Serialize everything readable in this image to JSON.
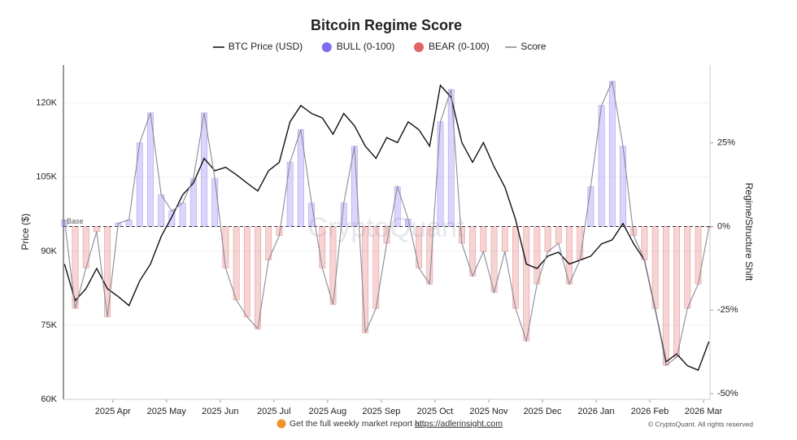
{
  "chart_data": {
    "type": "regime",
    "title": "Bitcoin Regime Score",
    "y_label": "Price ($)",
    "y2_label": "Regime/Structure Shift",
    "base_label": "Base",
    "watermark": "CryptoQuant",
    "footer_text": "Get the full weekly market report at",
    "footer_link": "https://adlerinsight.com",
    "copyright": "© CryptoQuant. All rights reserved",
    "x": [
      3.1,
      3.3,
      3.5,
      3.7,
      3.9,
      4.1,
      4.3,
      4.5,
      4.7,
      4.9,
      5.1,
      5.3,
      5.5,
      5.7,
      5.9,
      6.1,
      6.3,
      6.5,
      6.7,
      6.9,
      7.1,
      7.3,
      7.5,
      7.7,
      7.9,
      8.1,
      8.3,
      8.5,
      8.7,
      8.9,
      9.1,
      9.3,
      9.5,
      9.7,
      9.9,
      10.1,
      10.3,
      10.5,
      10.7,
      10.9,
      11.1,
      11.3,
      11.5,
      11.7,
      11.9,
      12.1,
      12.3,
      12.5,
      12.7,
      12.9,
      13.1,
      13.3,
      13.5,
      13.7,
      13.9,
      14.1,
      14.3,
      14.5,
      14.7,
      14.9,
      15.1
    ],
    "xlim": [
      3.08,
      15.12
    ],
    "xticks": [
      {
        "value": 4,
        "label": "2025 Apr"
      },
      {
        "value": 5,
        "label": "2025 May"
      },
      {
        "value": 6,
        "label": "2025 Jun"
      },
      {
        "value": 7,
        "label": "2025 Jul"
      },
      {
        "value": 8,
        "label": "2025 Aug"
      },
      {
        "value": 9,
        "label": "2025 Sep"
      },
      {
        "value": 10,
        "label": "2025 Oct"
      },
      {
        "value": 11,
        "label": "2025 Nov"
      },
      {
        "value": 12,
        "label": "2025 Dec"
      },
      {
        "value": 13,
        "label": "2026 Jan"
      },
      {
        "value": 14,
        "label": "2026 Feb"
      },
      {
        "value": 15,
        "label": "2026 Mar"
      }
    ],
    "ylim": [
      60000,
      127700
    ],
    "yticks": [
      {
        "value": 60000,
        "label": "60K"
      },
      {
        "value": 75000,
        "label": "75K"
      },
      {
        "value": 90000,
        "label": "90K"
      },
      {
        "value": 105000,
        "label": "105K"
      },
      {
        "value": 120000,
        "label": "120K"
      }
    ],
    "y2lim": [
      -51.7,
      48.3
    ],
    "y2ticks": [
      {
        "value": -50,
        "label": "-50%"
      },
      {
        "value": -25,
        "label": "-25%"
      },
      {
        "value": 0,
        "label": "0%"
      },
      {
        "value": 25,
        "label": "25%"
      }
    ],
    "grid": true,
    "regimes": [
      {
        "name": "BULL (0-100)",
        "color": "#7b6cf0"
      },
      {
        "name": "BEAR (0-100)",
        "color": "#e06464"
      }
    ],
    "series": [
      {
        "name": "BTC Price (USD)",
        "color": "#111111",
        "axis": "y",
        "values": [
          87400,
          80000,
          82400,
          86500,
          82400,
          80800,
          79000,
          84000,
          87400,
          93000,
          97000,
          101400,
          103800,
          108800,
          106300,
          107000,
          105500,
          103800,
          102200,
          106300,
          108000,
          116200,
          119500,
          117900,
          117000,
          113700,
          117900,
          115400,
          111300,
          108800,
          113000,
          112000,
          116200,
          114600,
          111300,
          123600,
          121200,
          112000,
          108000,
          112000,
          107100,
          103000,
          96400,
          87400,
          86500,
          89000,
          89800,
          87400,
          88200,
          89000,
          91500,
          92300,
          95600,
          91500,
          88200,
          78300,
          67600,
          69200,
          66800,
          65900,
          71700
        ]
      },
      {
        "name": "Score",
        "color": "#8a8a96",
        "axis": "y2",
        "values": [
          2,
          -24.5,
          -12.4,
          -1.5,
          -27,
          1,
          2,
          25,
          34,
          9.5,
          4.6,
          7,
          14.3,
          34,
          14.3,
          -12.4,
          -22,
          -27,
          -30.6,
          -10,
          -2.7,
          19.2,
          29,
          7,
          -12.4,
          -23.3,
          7,
          24,
          -31.8,
          -24.5,
          -5,
          11.9,
          2.2,
          -12.4,
          -17.2,
          31.3,
          41,
          -5,
          -14.8,
          -7.5,
          -19.7,
          -7.5,
          -24.5,
          -34.2,
          -17.2,
          -7.5,
          -5,
          -17.2,
          -10,
          11.9,
          36.2,
          43.4,
          24,
          -2.7,
          -10,
          -24.5,
          -41.5,
          -39.1,
          -24.5,
          -17.2,
          -0.2
        ]
      }
    ]
  }
}
